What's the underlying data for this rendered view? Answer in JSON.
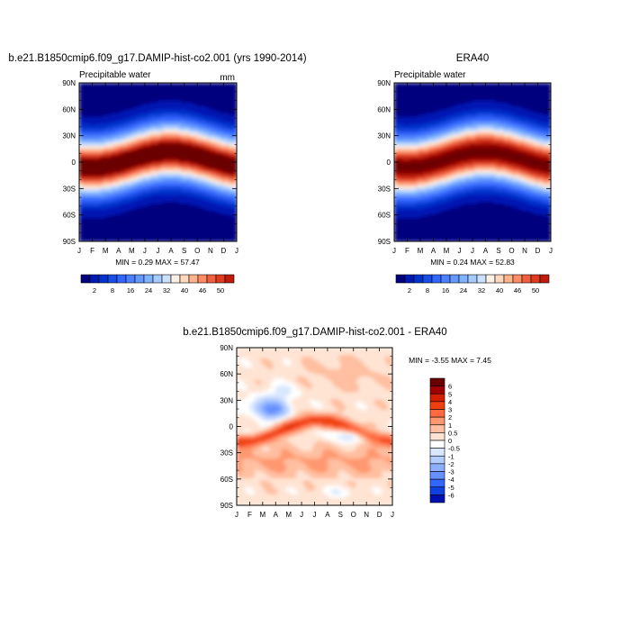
{
  "chart_data": [
    {
      "type": "heatmap",
      "title": "b.e21.B1850cmip6.f09_g17.DAMIP-hist-co2.001 (yrs 1990-2014)",
      "subtitle_left": "Precipitable water",
      "subtitle_right": "mm",
      "x_ticks": [
        "J",
        "F",
        "M",
        "A",
        "M",
        "J",
        "J",
        "A",
        "S",
        "O",
        "N",
        "D",
        "J"
      ],
      "y_ticks": [
        "90N",
        "60N",
        "30N",
        "0",
        "30S",
        "60S",
        "90S"
      ],
      "min_max_text": "MIN =   0.29 MAX =  57.47",
      "min": 0.29,
      "max": 57.47,
      "colorbar_labels": [
        "2",
        "8",
        "16",
        "24",
        "32",
        "40",
        "46",
        "50"
      ]
    },
    {
      "type": "heatmap",
      "title": "ERA40",
      "subtitle_left": "Precipitable water",
      "x_ticks": [
        "J",
        "F",
        "M",
        "A",
        "M",
        "J",
        "J",
        "A",
        "S",
        "O",
        "N",
        "D",
        "J"
      ],
      "y_ticks": [
        "90N",
        "60N",
        "30N",
        "0",
        "30S",
        "60S",
        "90S"
      ],
      "min_max_text": "MIN =   0.24 MAX =  52.83",
      "min": 0.24,
      "max": 52.83,
      "colorbar_labels": [
        "2",
        "8",
        "16",
        "24",
        "32",
        "40",
        "46",
        "50"
      ]
    },
    {
      "type": "heatmap",
      "title": "b.e21.B1850cmip6.f09_g17.DAMIP-hist-co2.001 - ERA40",
      "x_ticks": [
        "J",
        "F",
        "M",
        "A",
        "M",
        "J",
        "J",
        "A",
        "S",
        "O",
        "N",
        "D",
        "J"
      ],
      "y_ticks": [
        "90N",
        "60N",
        "30N",
        "0",
        "30S",
        "60S",
        "90S"
      ],
      "min_max_text": "MIN =  -3.55 MAX =   7.45",
      "min": -3.55,
      "max": 7.45,
      "colorbar_labels": [
        "6",
        "5",
        "4",
        "3",
        "2",
        "1",
        "0.5",
        "0",
        "-0.5",
        "-1",
        "-2",
        "-3",
        "-4",
        "-5",
        "-6"
      ]
    }
  ],
  "colors": {
    "abs_scale": [
      "#00007f",
      "#0019b3",
      "#0033cc",
      "#1a4de6",
      "#3366ff",
      "#4d80ff",
      "#6699ff",
      "#80b3ff",
      "#a6ccff",
      "#cce0ff",
      "#fff0e6",
      "#ffd9bf",
      "#ffb38c",
      "#ff8c66",
      "#f06040",
      "#e03a1f",
      "#c01a0a",
      "#900000",
      "#6a0000"
    ],
    "diff_scale": [
      "#6a0000",
      "#a00000",
      "#d42000",
      "#f04010",
      "#ff6a40",
      "#ff9870",
      "#ffbfa0",
      "#ffe4d4",
      "#ffffff",
      "#d9e8ff",
      "#b3ccff",
      "#8cb0ff",
      "#6690ff",
      "#3366ff",
      "#1040e0",
      "#0010b0",
      "#000080"
    ]
  }
}
